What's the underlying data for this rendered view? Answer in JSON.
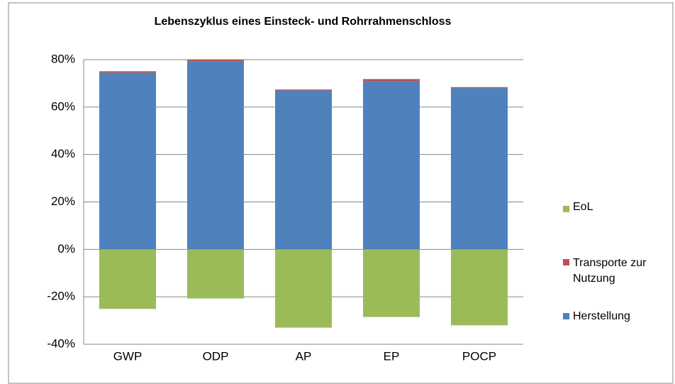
{
  "chart_data": {
    "type": "stacked-bar",
    "title": "Lebenszyklus eines Einsteck- und Rohrrahmenschloss",
    "categories": [
      "GWP",
      "ODP",
      "AP",
      "EP",
      "POCP"
    ],
    "series": [
      {
        "name": "Herstellung",
        "color": "#4f81bd",
        "values": [
          74.5,
          79.3,
          67,
          71,
          68
        ]
      },
      {
        "name": "Transporte zur Nutzung",
        "color": "#c0504d",
        "values": [
          0.6,
          0.6,
          0.4,
          0.8,
          0.4
        ]
      },
      {
        "name": "EoL",
        "color": "#9bbb59",
        "values": [
          -25.1,
          -20.7,
          -33,
          -28.5,
          -32
        ]
      }
    ],
    "ylim": [
      -40,
      80
    ],
    "yticks": [
      {
        "value": -40,
        "label": "-40%"
      },
      {
        "value": -20,
        "label": "-20%"
      },
      {
        "value": 0,
        "label": "0%"
      },
      {
        "value": 20,
        "label": "20%"
      },
      {
        "value": 40,
        "label": "40%"
      },
      {
        "value": 60,
        "label": "60%"
      },
      {
        "value": 80,
        "label": "80%"
      }
    ],
    "grid": true
  }
}
